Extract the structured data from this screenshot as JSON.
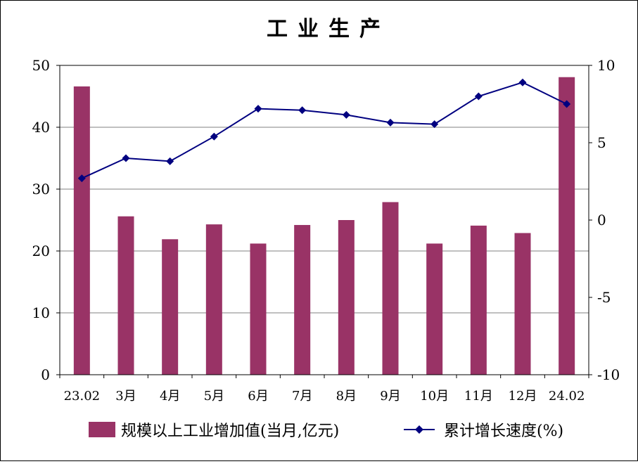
{
  "chart_data": {
    "type": "bar+line",
    "title": "工业生产",
    "categories": [
      "23.02",
      "3月",
      "4月",
      "5月",
      "6月",
      "7月",
      "8月",
      "9月",
      "10月",
      "11月",
      "12月",
      "24.02"
    ],
    "series": [
      {
        "name": "规模以上工业增加值(当月,亿元)",
        "type": "bar",
        "axis": "left",
        "color": "#993366",
        "values": [
          46.6,
          25.6,
          21.9,
          24.3,
          21.2,
          24.2,
          25.0,
          27.9,
          21.2,
          24.1,
          22.9,
          48.1
        ]
      },
      {
        "name": "累计增长速度(%)",
        "type": "line",
        "axis": "right",
        "color": "#000080",
        "marker": "diamond",
        "values": [
          2.7,
          4.0,
          3.8,
          5.4,
          7.2,
          7.1,
          6.8,
          6.3,
          6.2,
          8.0,
          8.9,
          7.5
        ]
      }
    ],
    "y_left": {
      "min": 0,
      "max": 50,
      "ticks": [
        0,
        10,
        20,
        30,
        40,
        50
      ]
    },
    "y_right": {
      "min": -10,
      "max": 10,
      "ticks": [
        -10,
        -5,
        0,
        5,
        10
      ]
    },
    "grid": true,
    "legend": "bottom"
  }
}
